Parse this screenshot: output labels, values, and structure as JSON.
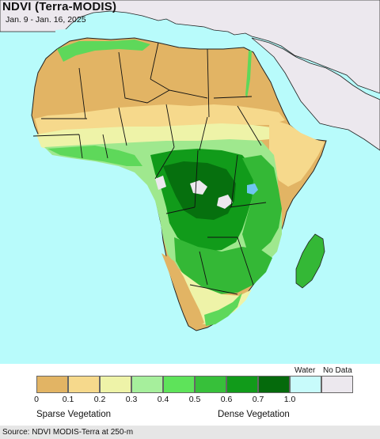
{
  "header": {
    "title": "NDVI (Terra-MODIS)",
    "date_range": "Jan. 9 - Jan. 16, 2025"
  },
  "map": {
    "region": "Africa",
    "colors": {
      "ocean": "#b8fbfb",
      "no_data_land": "#ece8ee",
      "desert": "#e2b464",
      "dry": "#f6d98c",
      "sparse": "#eef3a8",
      "light_green": "#9fe88e",
      "green": "#5ed85a",
      "mid_green": "#34b836",
      "dark_green": "#119b1a",
      "forest": "#06700e",
      "lake": "#6fc6f0",
      "border": "#000000"
    }
  },
  "legend": {
    "water_label": "Water",
    "nodata_label": "No Data",
    "swatches": [
      {
        "color": "#e2b464"
      },
      {
        "color": "#f6d98c"
      },
      {
        "color": "#eef3a8"
      },
      {
        "color": "#a6ef9c"
      },
      {
        "color": "#5ee35a"
      },
      {
        "color": "#37c03a"
      },
      {
        "color": "#119b1a"
      },
      {
        "color": "#056a0c"
      },
      {
        "color": "#c8fbfb"
      },
      {
        "color": "#ece8ee"
      }
    ],
    "ticks": [
      "0",
      "0.1",
      "0.2",
      "0.3",
      "0.4",
      "0.5",
      "0.6",
      "0.7",
      "1.0"
    ],
    "sparse_label": "Sparse Vegetation",
    "dense_label": "Dense Vegetation"
  },
  "footer": {
    "source": "Source: NDVI MODIS-Terra at 250-m"
  }
}
